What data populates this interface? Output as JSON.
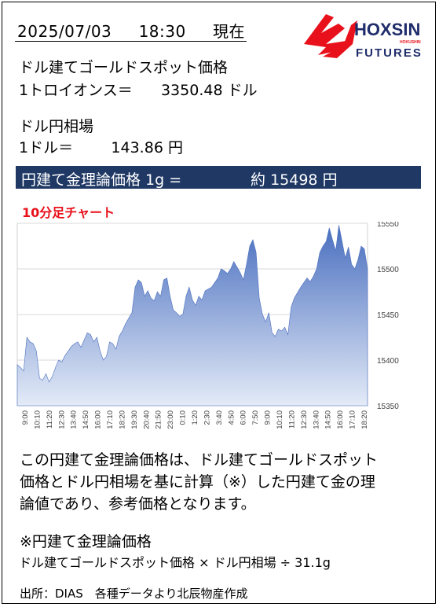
{
  "header": {
    "date": "2025/07/03",
    "time": "18:30",
    "suffix": "現在"
  },
  "logo": {
    "name": "HOXSIN",
    "sub": "FUTURES",
    "tag": "HOKUSHIN",
    "red": "#e8101a",
    "navy": "#1f2d6b"
  },
  "gold_usd": {
    "label": "ドル建てゴールドスポット価格",
    "unit_label": "1トロイオンス＝",
    "value": "3350.48",
    "currency": "ドル"
  },
  "fx": {
    "label": "ドル円相場",
    "unit_label": "1ドル＝",
    "value": "143.86",
    "currency": "円"
  },
  "banner": {
    "label": "円建て金理論価格 1g =",
    "prefix": "約",
    "value": "15498",
    "currency": "円",
    "bg_color": "#1f3864"
  },
  "chart_title": "10分足チャート",
  "chart_data": {
    "type": "area",
    "title": "10分足チャート",
    "x_tick_labels": [
      "9:00",
      "10:10",
      "11:20",
      "12:30",
      "13:40",
      "14:50",
      "16:00",
      "17:10",
      "18:20",
      "19:30",
      "20:40",
      "21:50",
      "23:00",
      "0:10",
      "1:20",
      "2:30",
      "3:40",
      "4:50",
      "6:00",
      "7:50",
      "9:00",
      "10:10",
      "11:20",
      "12:30",
      "13:40",
      "14:50",
      "16:00",
      "17:10",
      "18:20"
    ],
    "ylim": [
      15350,
      15550
    ],
    "y_ticks": [
      15350,
      15400,
      15450,
      15500,
      15550
    ],
    "grid": true,
    "fill_top": "#4a6fbf",
    "fill_bottom": "#e4ebf8",
    "values": [
      15395,
      15392,
      15388,
      15425,
      15420,
      15418,
      15410,
      15380,
      15378,
      15385,
      15376,
      15382,
      15392,
      15400,
      15398,
      15405,
      15410,
      15415,
      15418,
      15420,
      15414,
      15422,
      15430,
      15428,
      15420,
      15425,
      15410,
      15400,
      15404,
      15420,
      15418,
      15412,
      15426,
      15432,
      15440,
      15446,
      15452,
      15480,
      15488,
      15485,
      15470,
      15476,
      15468,
      15465,
      15475,
      15470,
      15488,
      15490,
      15470,
      15455,
      15452,
      15448,
      15450,
      15470,
      15480,
      15466,
      15460,
      15470,
      15466,
      15476,
      15478,
      15480,
      15485,
      15490,
      15500,
      15498,
      15495,
      15500,
      15508,
      15502,
      15496,
      15488,
      15505,
      15525,
      15532,
      15518,
      15468,
      15450,
      15442,
      15452,
      15430,
      15426,
      15434,
      15432,
      15436,
      15428,
      15458,
      15468,
      15474,
      15480,
      15485,
      15490,
      15486,
      15492,
      15500,
      15518,
      15525,
      15530,
      15545,
      15532,
      15520,
      15548,
      15530,
      15512,
      15524,
      15505,
      15500,
      15510,
      15525,
      15522,
      15500
    ]
  },
  "description": [
    "この円建て金理論価格は、ドル建てゴールドスポット",
    "価格とドル円相場を基に計算（※）した円建て金の理",
    "論値であり、参考価格となります。"
  ],
  "note": {
    "title": "※円建て金理論価格",
    "formula": "ドル建てゴールドスポット価格 × ドル円相場 ÷ 31.1g"
  },
  "source": "出所：DIAS　各種データより北辰物産作成"
}
